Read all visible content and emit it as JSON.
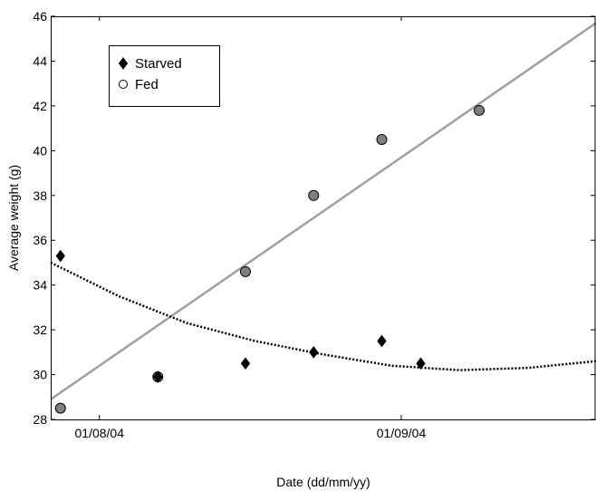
{
  "chart_data": {
    "type": "scatter",
    "title": "",
    "xlabel": "Date (dd/mm/yy)",
    "ylabel": "Average weight (g)",
    "xlim": [
      "2004-07-27",
      "2004-09-21"
    ],
    "ylim": [
      28,
      46
    ],
    "yticks": [
      28,
      30,
      32,
      34,
      36,
      38,
      40,
      42,
      44,
      46
    ],
    "xticks": [
      {
        "date": "2004-08-01",
        "label": "01/08/04"
      },
      {
        "date": "2004-09-01",
        "label": "01/09/04"
      }
    ],
    "grid": false,
    "legend_position": "top-left",
    "series": [
      {
        "name": "Starved",
        "marker": "diamond",
        "color": "#000000",
        "points": [
          {
            "x": "2004-07-28",
            "y": 35.3
          },
          {
            "x": "2004-08-07",
            "y": 29.9
          },
          {
            "x": "2004-08-16",
            "y": 30.5
          },
          {
            "x": "2004-08-23",
            "y": 31.0
          },
          {
            "x": "2004-08-30",
            "y": 31.5
          },
          {
            "x": "2004-09-03",
            "y": 30.5
          }
        ]
      },
      {
        "name": "Fed",
        "marker": "circle",
        "color": "#808080",
        "points": [
          {
            "x": "2004-07-28",
            "y": 28.5
          },
          {
            "x": "2004-08-07",
            "y": 29.9
          },
          {
            "x": "2004-08-16",
            "y": 34.6
          },
          {
            "x": "2004-08-23",
            "y": 38.0
          },
          {
            "x": "2004-08-30",
            "y": 40.5
          },
          {
            "x": "2004-09-09",
            "y": 41.8
          }
        ]
      }
    ],
    "fits": [
      {
        "series": "Fed",
        "style": "solid",
        "color": "#a0a0a0",
        "points": [
          {
            "x": "2004-07-27",
            "y": 28.9
          },
          {
            "x": "2004-09-21",
            "y": 45.7
          }
        ]
      },
      {
        "series": "Starved",
        "style": "dotted",
        "color": "#000000",
        "points": [
          {
            "x": "2004-07-27",
            "y": 35.0
          },
          {
            "x": "2004-08-03",
            "y": 33.5
          },
          {
            "x": "2004-08-10",
            "y": 32.3
          },
          {
            "x": "2004-08-17",
            "y": 31.5
          },
          {
            "x": "2004-08-24",
            "y": 30.9
          },
          {
            "x": "2004-08-31",
            "y": 30.4
          },
          {
            "x": "2004-09-07",
            "y": 30.2
          },
          {
            "x": "2004-09-14",
            "y": 30.3
          },
          {
            "x": "2004-09-21",
            "y": 30.6
          }
        ]
      }
    ]
  }
}
